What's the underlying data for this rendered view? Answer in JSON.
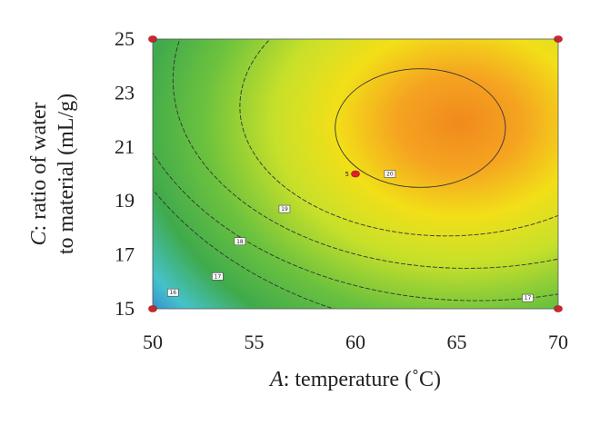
{
  "chart_data": {
    "type": "contour",
    "xlabel": {
      "prefix": "A",
      "rest": ": temperature (˚C)"
    },
    "ylabel": {
      "prefix": "C",
      "line1_rest": ": ratio of water",
      "line2": "to material (mL/g)"
    },
    "xlim": [
      50,
      70
    ],
    "ylim": [
      15,
      25
    ],
    "x_ticks": [
      "50",
      "55",
      "60",
      "65",
      "70"
    ],
    "y_ticks": [
      "15",
      "17",
      "19",
      "21",
      "23",
      "25"
    ],
    "colormap": [
      "#2b2f8f",
      "#2f7fd8",
      "#49c6e8",
      "#3fb24a",
      "#9ed43a",
      "#f2ee1a",
      "#f8a61d",
      "#f28a1e"
    ],
    "contours": [
      {
        "level": "20",
        "label": "20",
        "center": [
          63.2,
          21.7
        ],
        "rx": 4.2,
        "ry": 2.2,
        "label_at": [
          61.7,
          20.0
        ]
      },
      {
        "level": "19",
        "label": "19",
        "center": [
          64.5,
          22.5
        ],
        "rx": 10.2,
        "ry": 4.8,
        "label_at": [
          56.5,
          18.7
        ]
      },
      {
        "level": "18",
        "label": "18",
        "center": [
          65.5,
          23.5
        ],
        "rx": 14.5,
        "ry": 7.0,
        "label_at": [
          54.3,
          17.5
        ]
      },
      {
        "level": "17",
        "label": "17",
        "center": [
          66.0,
          24.5
        ],
        "rx": 17.5,
        "ry": 9.2,
        "label_at": [
          53.2,
          16.2
        ]
      },
      {
        "level": "16",
        "label": "16",
        "center": [
          66.5,
          25.5
        ],
        "rx": 19.5,
        "ry": 11.4,
        "label_at": [
          51.0,
          15.6
        ]
      },
      {
        "level": "17b",
        "label": "17",
        "center": null,
        "rx": null,
        "ry": null,
        "label_at": [
          68.5,
          15.4
        ]
      }
    ],
    "design_points": [
      {
        "x": 50,
        "y": 15
      },
      {
        "x": 50,
        "y": 25
      },
      {
        "x": 70,
        "y": 15
      },
      {
        "x": 70,
        "y": 25
      },
      {
        "x": 60,
        "y": 20,
        "label": "5"
      }
    ],
    "grid": false,
    "legend": "none"
  }
}
